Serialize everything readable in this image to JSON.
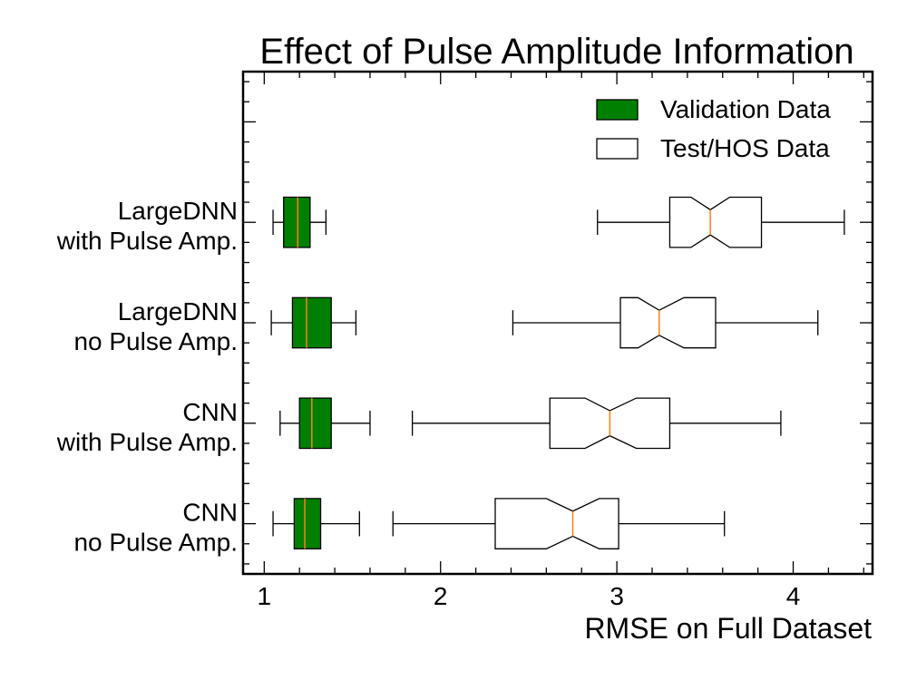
{
  "chart_data": {
    "type": "box",
    "orientation": "horizontal",
    "notched": true,
    "title": "Effect of Pulse Amplitude Information",
    "xlabel": "RMSE on Full Dataset",
    "xlim": [
      0.88,
      4.45
    ],
    "xticks": [
      1,
      2,
      3,
      4
    ],
    "grid": false,
    "legend_position": "top-right",
    "categories": [
      [
        "CNN",
        "no Pulse Amp."
      ],
      [
        "CNN",
        "with Pulse Amp."
      ],
      [
        "LargeDNN",
        "no Pulse Amp."
      ],
      [
        "LargeDNN",
        "with Pulse Amp."
      ]
    ],
    "series": [
      {
        "name": "Validation Data",
        "fill": "#008000",
        "median_color": "#ff7f0e",
        "boxes": [
          {
            "whislo": 1.05,
            "q1": 1.17,
            "med": 1.23,
            "q3": 1.32,
            "whishi": 1.54
          },
          {
            "whislo": 1.09,
            "q1": 1.2,
            "med": 1.27,
            "q3": 1.38,
            "whishi": 1.6
          },
          {
            "whislo": 1.04,
            "q1": 1.16,
            "med": 1.24,
            "q3": 1.38,
            "whishi": 1.52
          },
          {
            "whislo": 1.05,
            "q1": 1.11,
            "med": 1.19,
            "q3": 1.26,
            "whishi": 1.35
          }
        ]
      },
      {
        "name": "Test/HOS Data",
        "fill": "#ffffff",
        "median_color": "#ff7f0e",
        "boxes": [
          {
            "whislo": 1.73,
            "q1": 2.31,
            "med": 2.75,
            "q3": 3.01,
            "whishi": 3.61,
            "notch_lo": 2.6,
            "notch_hi": 2.9
          },
          {
            "whislo": 1.84,
            "q1": 2.62,
            "med": 2.96,
            "q3": 3.3,
            "whishi": 3.93,
            "notch_lo": 2.82,
            "notch_hi": 3.11
          },
          {
            "whislo": 2.41,
            "q1": 3.02,
            "med": 3.24,
            "q3": 3.56,
            "whishi": 4.14,
            "notch_lo": 3.12,
            "notch_hi": 3.38
          },
          {
            "whislo": 2.89,
            "q1": 3.3,
            "med": 3.53,
            "q3": 3.82,
            "whishi": 4.29,
            "notch_lo": 3.42,
            "notch_hi": 3.64
          }
        ]
      }
    ]
  }
}
